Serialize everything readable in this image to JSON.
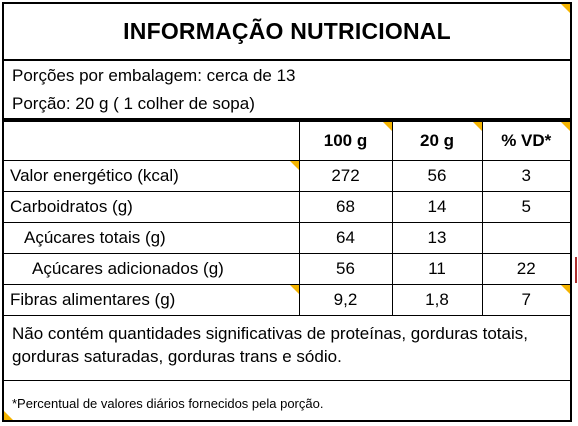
{
  "title": "INFORMAÇÃO NUTRICIONAL",
  "servings_per_package": "Porções por embalagem: cerca de 13",
  "serving_size": "Porção: 20 g ( 1 colher de sopa)",
  "columns": [
    "",
    "100 g",
    "20 g",
    "% VD*"
  ],
  "rows": [
    {
      "name": "Valor energético (kcal)",
      "per100": "272",
      "per_serving": "56",
      "vd": "3"
    },
    {
      "name": "Carboidratos (g)",
      "per100": "68",
      "per_serving": "14",
      "vd": "5"
    },
    {
      "name": "Açúcares totais (g)",
      "per100": "64",
      "per_serving": "13",
      "vd": ""
    },
    {
      "name": "Açúcares adicionados (g)",
      "per100": "56",
      "per_serving": "11",
      "vd": "22"
    },
    {
      "name": "Fibras alimentares (g)",
      "per100": "9,2",
      "per_serving": "1,8",
      "vd": "7"
    }
  ],
  "notice": "Não contém quantidades significativas de proteínas, gorduras totais, gorduras saturadas, gorduras trans  e sódio.",
  "footnote": "*Percentual de valores diários fornecidos pela porção.",
  "colors": {
    "border": "#000000",
    "accent_corner": "#f5b400"
  }
}
